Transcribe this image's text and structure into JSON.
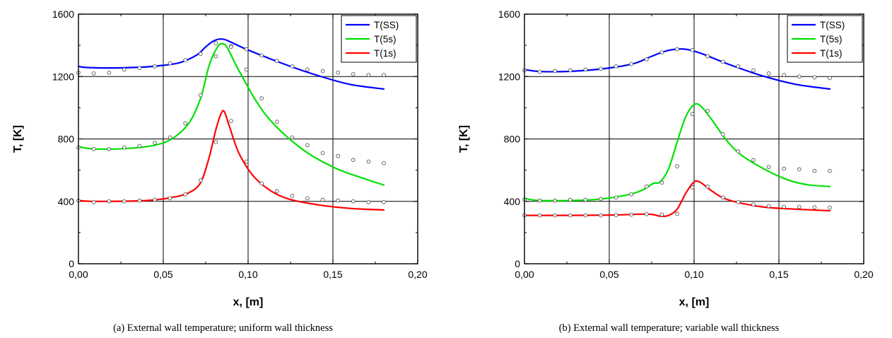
{
  "chart_data": [
    {
      "type": "line",
      "caption": "(a) External wall temperature; uniform wall thickness",
      "xlabel": "x, [m]",
      "ylabel": "T, [K]",
      "xlim": [
        0,
        0.2
      ],
      "ylim": [
        0,
        1600
      ],
      "x_ticks": [
        "0,00",
        "0,05",
        "0,10",
        "0,15",
        "0,20"
      ],
      "y_ticks": [
        "0",
        "400",
        "800",
        "1200",
        "1600"
      ],
      "grid": true,
      "legend_position": "top-right",
      "series": [
        {
          "name": "T(SS)",
          "color": "#0000ff",
          "x": [
            0,
            0.005,
            0.02,
            0.04,
            0.05,
            0.06,
            0.07,
            0.075,
            0.08,
            0.085,
            0.09,
            0.1,
            0.12,
            0.14,
            0.16,
            0.18
          ],
          "y": [
            1265,
            1258,
            1255,
            1262,
            1272,
            1290,
            1340,
            1390,
            1430,
            1440,
            1420,
            1370,
            1285,
            1210,
            1150,
            1120
          ]
        },
        {
          "name": "T(5s)",
          "color": "#00e000",
          "x": [
            0,
            0.01,
            0.03,
            0.045,
            0.055,
            0.065,
            0.072,
            0.077,
            0.082,
            0.085,
            0.088,
            0.095,
            0.11,
            0.13,
            0.15,
            0.17,
            0.18
          ],
          "y": [
            750,
            735,
            740,
            760,
            800,
            900,
            1060,
            1270,
            1390,
            1410,
            1380,
            1230,
            960,
            750,
            620,
            540,
            505
          ]
        },
        {
          "name": "T(1s)",
          "color": "#ff0000",
          "x": [
            0,
            0.01,
            0.04,
            0.055,
            0.065,
            0.072,
            0.077,
            0.081,
            0.084,
            0.086,
            0.089,
            0.095,
            0.105,
            0.12,
            0.14,
            0.16,
            0.18
          ],
          "y": [
            405,
            400,
            405,
            425,
            455,
            520,
            680,
            860,
            960,
            975,
            880,
            700,
            540,
            430,
            380,
            355,
            345
          ]
        }
      ],
      "markers": {
        "x": [
          0,
          0.009,
          0.018,
          0.027,
          0.036,
          0.045,
          0.054,
          0.063,
          0.072,
          0.081,
          0.09,
          0.099,
          0.108,
          0.117,
          0.126,
          0.135,
          0.144,
          0.153,
          0.162,
          0.171,
          0.18
        ],
        "y_top": [
          1225,
          1220,
          1225,
          1245,
          1255,
          1265,
          1285,
          1305,
          1345,
          1415,
          1395,
          1375,
          1335,
          1300,
          1265,
          1245,
          1235,
          1225,
          1215,
          1210,
          1210
        ],
        "y_mid": [
          745,
          735,
          735,
          745,
          755,
          775,
          810,
          900,
          1080,
          1330,
          1390,
          1245,
          1060,
          910,
          810,
          760,
          710,
          690,
          665,
          655,
          645
        ],
        "y_low": [
          405,
          395,
          400,
          400,
          405,
          410,
          420,
          445,
          535,
          780,
          915,
          655,
          515,
          465,
          435,
          420,
          410,
          405,
          400,
          395,
          395
        ]
      }
    },
    {
      "type": "line",
      "caption": "(b) External wall temperature; variable wall thickness",
      "xlabel": "x, [m]",
      "ylabel": "T, [K]",
      "xlim": [
        0,
        0.2
      ],
      "ylim": [
        0,
        1600
      ],
      "x_ticks": [
        "0,00",
        "0,05",
        "0,10",
        "0,15",
        "0,20"
      ],
      "y_ticks": [
        "0",
        "400",
        "800",
        "1200",
        "1600"
      ],
      "grid": true,
      "legend_position": "top-right",
      "series": [
        {
          "name": "T(SS)",
          "color": "#0000ff",
          "x": [
            0,
            0.01,
            0.03,
            0.05,
            0.065,
            0.075,
            0.085,
            0.095,
            0.105,
            0.12,
            0.14,
            0.16,
            0.18
          ],
          "y": [
            1245,
            1232,
            1235,
            1255,
            1285,
            1330,
            1368,
            1375,
            1345,
            1280,
            1205,
            1150,
            1120
          ]
        },
        {
          "name": "T(5s)",
          "color": "#00e000",
          "x": [
            0,
            0.01,
            0.04,
            0.06,
            0.07,
            0.076,
            0.08,
            0.085,
            0.09,
            0.095,
            0.1,
            0.104,
            0.11,
            0.12,
            0.13,
            0.15,
            0.165,
            0.18
          ],
          "y": [
            420,
            405,
            410,
            440,
            475,
            515,
            525,
            610,
            780,
            940,
            1020,
            1010,
            930,
            780,
            680,
            560,
            510,
            495
          ]
        },
        {
          "name": "T(1s)",
          "color": "#ff0000",
          "x": [
            0,
            0.02,
            0.05,
            0.07,
            0.076,
            0.08,
            0.085,
            0.09,
            0.095,
            0.1,
            0.104,
            0.11,
            0.12,
            0.14,
            0.16,
            0.18
          ],
          "y": [
            310,
            310,
            312,
            318,
            315,
            305,
            310,
            350,
            450,
            525,
            520,
            470,
            410,
            365,
            350,
            340
          ]
        }
      ],
      "markers": {
        "x": [
          0,
          0.009,
          0.018,
          0.027,
          0.036,
          0.045,
          0.054,
          0.063,
          0.072,
          0.081,
          0.09,
          0.099,
          0.108,
          0.117,
          0.126,
          0.135,
          0.144,
          0.153,
          0.162,
          0.171,
          0.18
        ],
        "y_top": [
          1240,
          1230,
          1235,
          1240,
          1245,
          1250,
          1265,
          1280,
          1310,
          1355,
          1375,
          1370,
          1330,
          1295,
          1265,
          1240,
          1220,
          1210,
          1200,
          1195,
          1190
        ],
        "y_mid": [
          410,
          405,
          405,
          410,
          410,
          415,
          425,
          445,
          495,
          520,
          625,
          960,
          980,
          830,
          720,
          665,
          620,
          610,
          605,
          595,
          595
        ],
        "y_low": [
          310,
          310,
          310,
          310,
          310,
          310,
          312,
          315,
          318,
          315,
          320,
          490,
          495,
          425,
          395,
          380,
          370,
          365,
          365,
          362,
          360
        ]
      }
    }
  ]
}
